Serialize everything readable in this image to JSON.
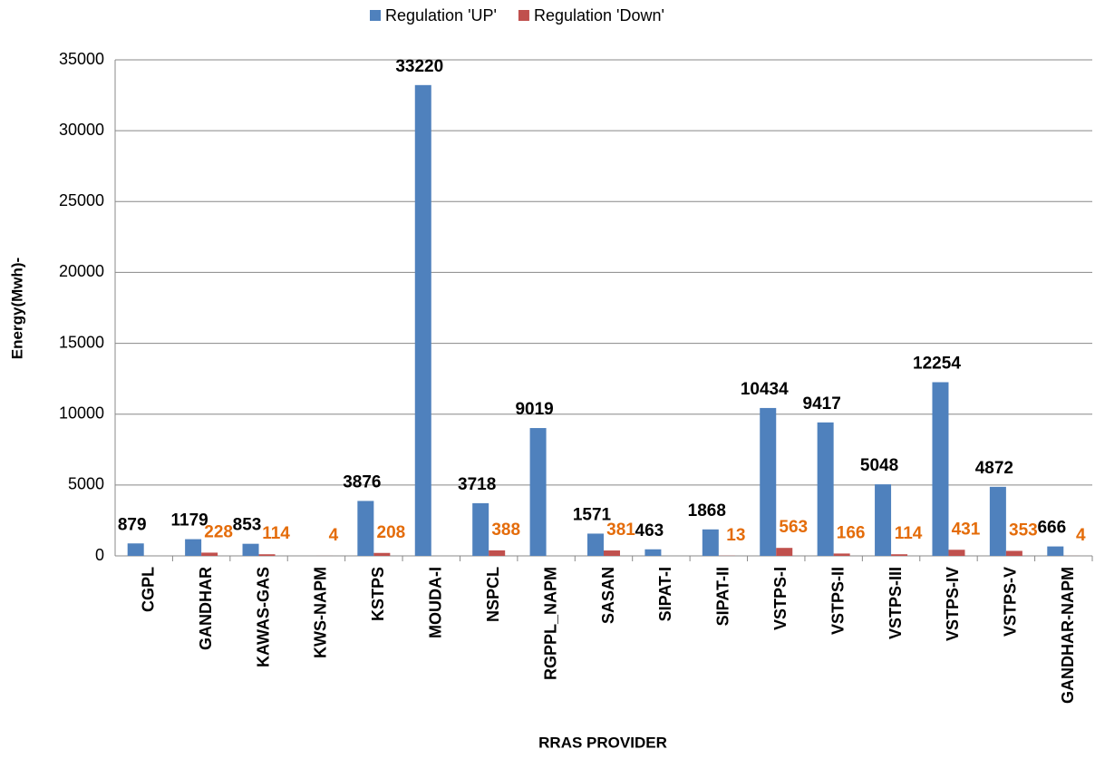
{
  "chart_data": {
    "type": "bar",
    "x_label": "RRAS PROVIDER",
    "y_label": "Energy(Mwh)-",
    "categories": [
      "CGPL",
      "GANDHAR",
      "KAWAS-GAS",
      "KWS-NAPM",
      "KSTPS",
      "MOUDA-I",
      "NSPCL",
      "RGPPL_NAPM",
      "SASAN",
      "SIPAT-I",
      "SIPAT-II",
      "VSTPS-I",
      "VSTPS-II",
      "VSTPS-III",
      "VSTPS-IV",
      "VSTPS-V",
      "GANDHAR-NAPM"
    ],
    "series": [
      {
        "name": "Regulation 'UP'",
        "color": "#4f81bd",
        "label_color": "#000000",
        "values": [
          879,
          1179,
          853,
          null,
          3876,
          33220,
          3718,
          9019,
          1571,
          463,
          1868,
          10434,
          9417,
          5048,
          12254,
          4872,
          666
        ]
      },
      {
        "name": "Regulation 'Down'",
        "color": "#c0504d",
        "label_color": "#e46c0a",
        "values": [
          null,
          228,
          114,
          4,
          208,
          null,
          388,
          null,
          381,
          null,
          13,
          563,
          166,
          114,
          431,
          353,
          4
        ]
      }
    ],
    "ylim": [
      0,
      35000
    ],
    "yticks": [
      0,
      5000,
      10000,
      15000,
      20000,
      25000,
      30000,
      35000
    ],
    "grid": true,
    "legend": "top"
  }
}
